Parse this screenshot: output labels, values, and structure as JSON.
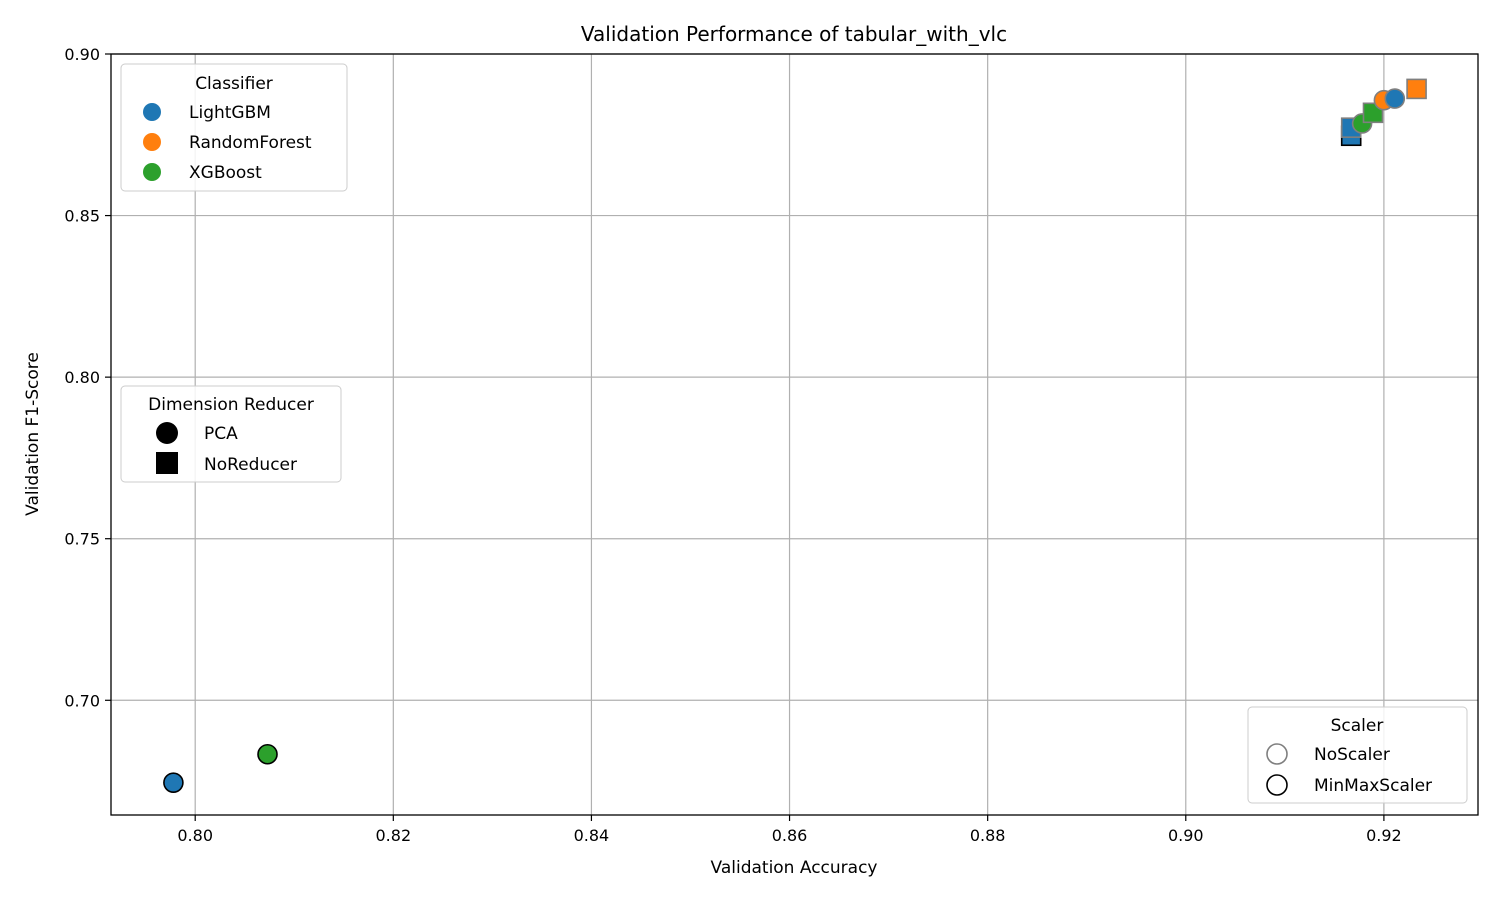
{
  "chart_data": {
    "type": "scatter",
    "title": "Validation Performance of tabular_with_vlc",
    "xlabel": "Validation Accuracy",
    "ylabel": "Validation F1-Score",
    "xlim": [
      0.7915,
      0.9295
    ],
    "ylim": [
      0.6645,
      0.9
    ],
    "xticks": [
      "0.80",
      "0.82",
      "0.84",
      "0.86",
      "0.88",
      "0.90",
      "0.92"
    ],
    "xtick_values": [
      0.8,
      0.82,
      0.84,
      0.86,
      0.88,
      0.9,
      0.92
    ],
    "yticks": [
      "0.70",
      "0.75",
      "0.80",
      "0.85",
      "0.90"
    ],
    "ytick_values": [
      0.7,
      0.75,
      0.8,
      0.85,
      0.9
    ],
    "grid": true,
    "colors": {
      "LightGBM": "#1f77b4",
      "RandomForest": "#ff7f0e",
      "XGBoost": "#2ca02c"
    },
    "scaler_edge_colors": {
      "NoScaler": "#7f7f7f",
      "MinMaxScaler": "#000000"
    },
    "points": [
      {
        "classifier": "LightGBM",
        "reducer": "PCA",
        "scaler": "MinMaxScaler",
        "x": 0.7978,
        "y": 0.6745
      },
      {
        "classifier": "XGBoost",
        "reducer": "PCA",
        "scaler": "MinMaxScaler",
        "x": 0.8073,
        "y": 0.6833
      },
      {
        "classifier": "LightGBM",
        "reducer": "NoReducer",
        "scaler": "MinMaxScaler",
        "x": 0.9167,
        "y": 0.8747
      },
      {
        "classifier": "LightGBM",
        "reducer": "NoReducer",
        "scaler": "NoScaler",
        "x": 0.9167,
        "y": 0.8772
      },
      {
        "classifier": "XGBoost",
        "reducer": "PCA",
        "scaler": "NoScaler",
        "x": 0.9178,
        "y": 0.8785
      },
      {
        "classifier": "XGBoost",
        "reducer": "NoReducer",
        "scaler": "NoScaler",
        "x": 0.9189,
        "y": 0.8818
      },
      {
        "classifier": "RandomForest",
        "reducer": "PCA",
        "scaler": "NoScaler",
        "x": 0.92,
        "y": 0.8857
      },
      {
        "classifier": "LightGBM",
        "reducer": "PCA",
        "scaler": "NoScaler",
        "x": 0.9211,
        "y": 0.8862
      },
      {
        "classifier": "RandomForest",
        "reducer": "NoReducer",
        "scaler": "NoScaler",
        "x": 0.9233,
        "y": 0.8892
      }
    ],
    "legends": {
      "classifier": {
        "title": "Classifier",
        "placement": "upper-left",
        "entries": [
          "LightGBM",
          "RandomForest",
          "XGBoost"
        ]
      },
      "reducer": {
        "title": "Dimension Reducer",
        "placement": "center-left",
        "entries": [
          "PCA",
          "NoReducer"
        ]
      },
      "scaler": {
        "title": "Scaler",
        "placement": "lower-right",
        "entries": [
          "NoScaler",
          "MinMaxScaler"
        ]
      }
    }
  }
}
